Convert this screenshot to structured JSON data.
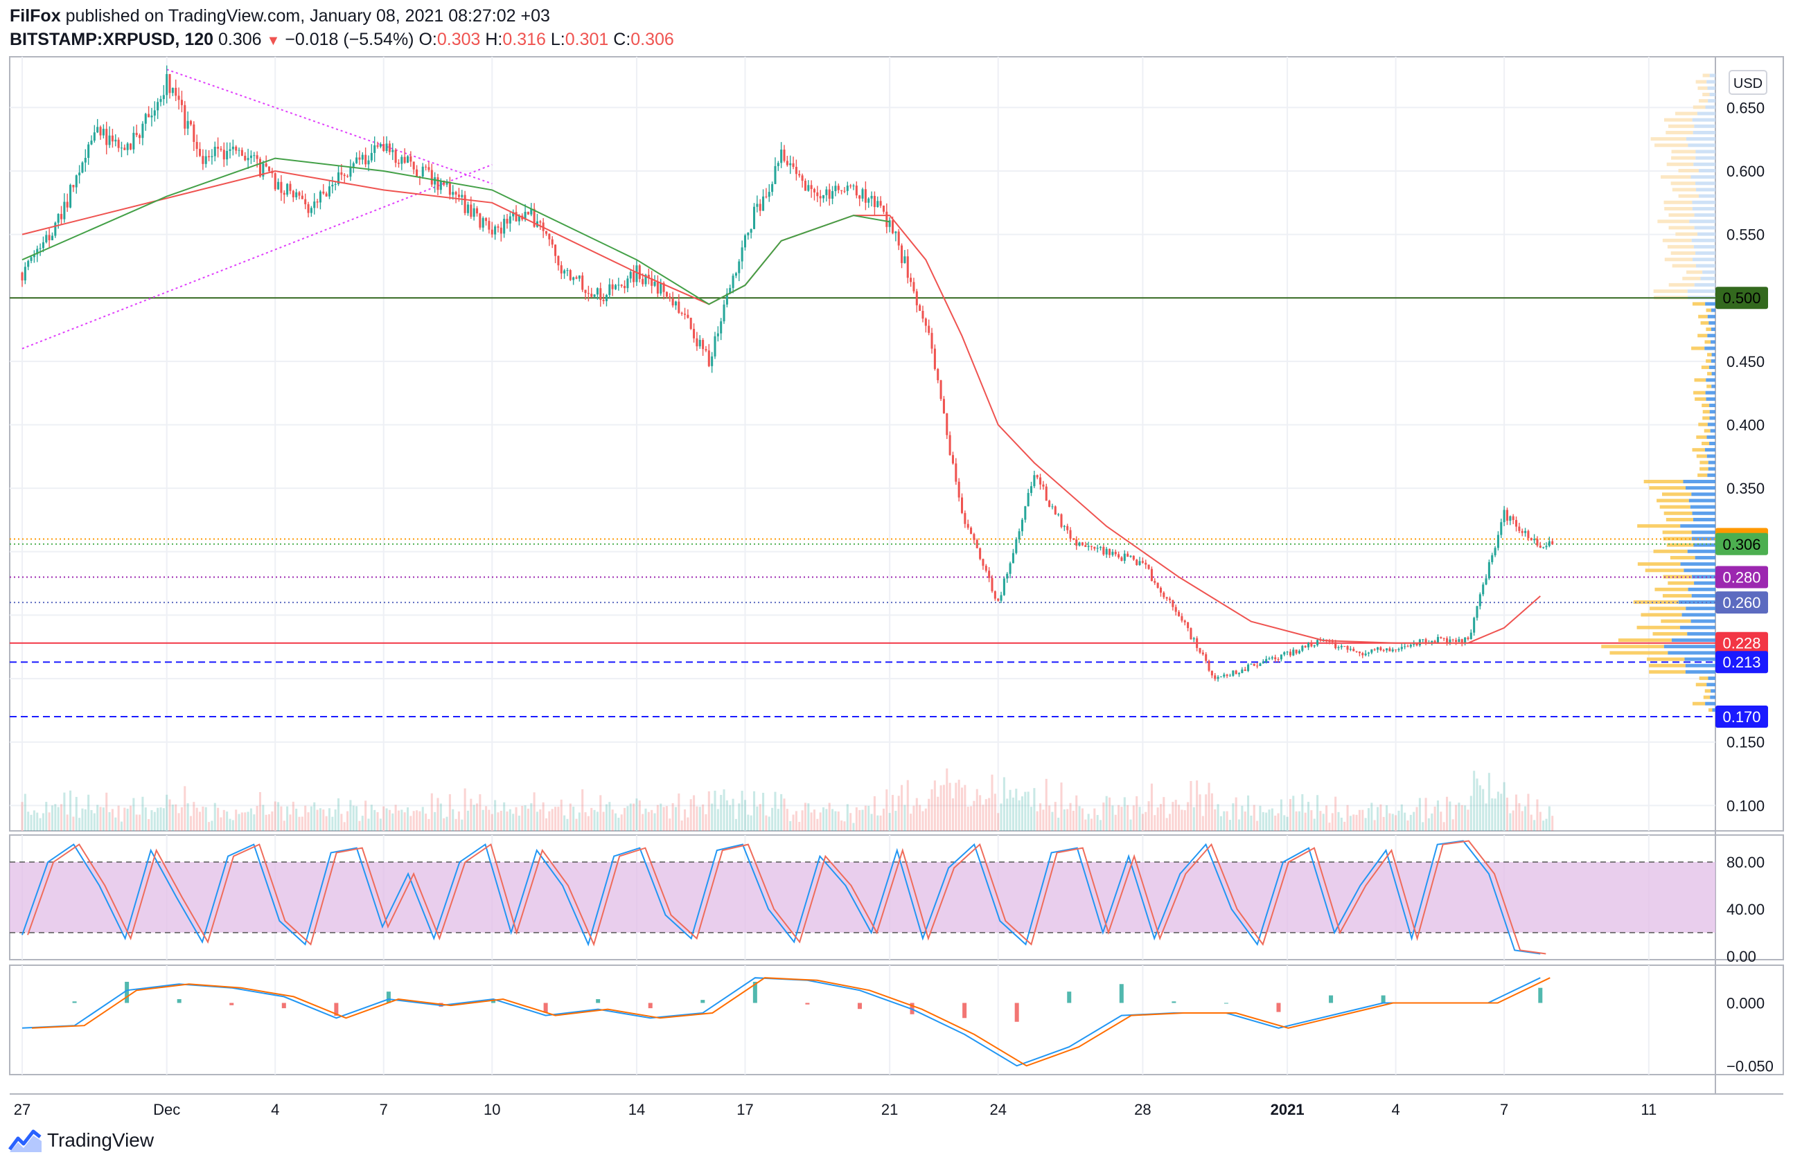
{
  "header": {
    "publisher": "FilFox",
    "published_text": "published on TradingView.com, January 08, 2021 08:27:02 +03",
    "symbol": "BITSTAMP:XRPUSD, 120",
    "last": "0.306",
    "change": "−0.018 (−5.54%)",
    "o_label": "O:",
    "o_value": "0.303",
    "h_label": "H:",
    "h_value": "0.316",
    "l_label": "L:",
    "l_value": "0.301",
    "c_label": "C:",
    "c_value": "0.306"
  },
  "footer": {
    "brand": "TradingView"
  },
  "colors": {
    "up": "#26a69a",
    "down": "#ef5350",
    "ma_fast": "#43a047",
    "ma_slow": "#ef5350",
    "stoch_k": "#2196f3",
    "stoch_d": "#ef6c5b",
    "stoch_band": "#e1bee7",
    "macd": "#2196f3",
    "signal": "#ff6d00",
    "support": "#33691e",
    "triangle": "#e040fb",
    "level_blue": "#1a1aff",
    "level_purple": "#9c27b0",
    "level_dot": "#5c6bc0",
    "level_orange": "#ff9800",
    "level_red": "#f23645"
  },
  "chart_data": [
    {
      "type": "candlestick",
      "title": "BITSTAMP:XRPUSD, 120",
      "currency_label": "USD",
      "x_tick_labels": [
        "27",
        "Dec",
        "4",
        "7",
        "10",
        "14",
        "17",
        "21",
        "24",
        "28",
        "2021",
        "4",
        "7",
        "11"
      ],
      "x_tick_dates": [
        "2020-11-27",
        "2020-12-01",
        "2020-12-04",
        "2020-12-07",
        "2020-12-10",
        "2020-12-14",
        "2020-12-17",
        "2020-12-21",
        "2020-12-24",
        "2020-12-28",
        "2021-01-01",
        "2021-01-04",
        "2021-01-07",
        "2021-01-11"
      ],
      "y_ticks": [
        0.1,
        0.15,
        0.2,
        0.25,
        0.3,
        0.35,
        0.4,
        0.45,
        0.5,
        0.55,
        0.6,
        0.65
      ],
      "y_tick_labels": [
        "0.100",
        "0.150",
        "",
        "",
        "",
        "0.350",
        "0.400",
        "0.450",
        "",
        "0.550",
        "0.600",
        "0.650"
      ],
      "ylim": [
        0.08,
        0.69
      ],
      "close_path": [
        [
          "2020-11-27",
          0.52
        ],
        [
          "2020-11-28",
          0.56
        ],
        [
          "2020-11-29",
          0.63
        ],
        [
          "2020-11-30",
          0.62
        ],
        [
          "2020-12-01",
          0.67
        ],
        [
          "2020-12-02",
          0.61
        ],
        [
          "2020-12-03",
          0.62
        ],
        [
          "2020-12-04",
          0.59
        ],
        [
          "2020-12-05",
          0.57
        ],
        [
          "2020-12-06",
          0.6
        ],
        [
          "2020-12-07",
          0.62
        ],
        [
          "2020-12-08",
          0.6
        ],
        [
          "2020-12-09",
          0.58
        ],
        [
          "2020-12-10",
          0.55
        ],
        [
          "2020-12-11",
          0.57
        ],
        [
          "2020-12-12",
          0.52
        ],
        [
          "2020-12-13",
          0.5
        ],
        [
          "2020-12-14",
          0.52
        ],
        [
          "2020-12-15",
          0.5
        ],
        [
          "2020-12-16",
          0.45
        ],
        [
          "2020-12-17",
          0.55
        ],
        [
          "2020-12-18",
          0.61
        ],
        [
          "2020-12-19",
          0.58
        ],
        [
          "2020-12-20",
          0.59
        ],
        [
          "2020-12-21",
          0.56
        ],
        [
          "2020-12-22",
          0.48
        ],
        [
          "2020-12-23",
          0.33
        ],
        [
          "2020-12-24",
          0.26
        ],
        [
          "2020-12-25",
          0.36
        ],
        [
          "2020-12-26",
          0.31
        ],
        [
          "2020-12-27",
          0.3
        ],
        [
          "2020-12-28",
          0.29
        ],
        [
          "2020-12-29",
          0.25
        ],
        [
          "2020-12-30",
          0.2
        ],
        [
          "2020-12-31",
          0.21
        ],
        [
          "2021-01-01",
          0.22
        ],
        [
          "2021-01-02",
          0.23
        ],
        [
          "2021-01-03",
          0.22
        ],
        [
          "2021-01-04",
          0.225
        ],
        [
          "2021-01-05",
          0.23
        ],
        [
          "2021-01-06",
          0.23
        ],
        [
          "2021-01-07",
          0.33
        ],
        [
          "2021-01-08",
          0.306
        ]
      ],
      "ma_fast_path": [
        [
          "2020-11-27",
          0.53
        ],
        [
          "2020-12-01",
          0.58
        ],
        [
          "2020-12-04",
          0.61
        ],
        [
          "2020-12-07",
          0.6
        ],
        [
          "2020-12-10",
          0.585
        ],
        [
          "2020-12-14",
          0.53
        ],
        [
          "2020-12-16",
          0.495
        ],
        [
          "2020-12-17",
          0.51
        ],
        [
          "2020-12-18",
          0.545
        ],
        [
          "2020-12-20",
          0.565
        ],
        [
          "2020-12-21",
          0.56
        ]
      ],
      "ma_slow_path": [
        [
          "2020-11-27",
          0.55
        ],
        [
          "2020-12-04",
          0.6
        ],
        [
          "2020-12-07",
          0.585
        ],
        [
          "2020-12-10",
          0.575
        ],
        [
          "2020-12-14",
          0.52
        ],
        [
          "2020-12-16",
          0.495
        ],
        [
          "2020-12-17",
          0.51
        ],
        [
          "2020-12-18",
          0.545
        ],
        [
          "2020-12-20",
          0.565
        ],
        [
          "2020-12-21",
          0.565
        ],
        [
          "2020-12-22",
          0.53
        ],
        [
          "2020-12-23",
          0.47
        ],
        [
          "2020-12-24",
          0.4
        ],
        [
          "2020-12-25",
          0.37
        ],
        [
          "2020-12-27",
          0.32
        ],
        [
          "2020-12-29",
          0.28
        ],
        [
          "2020-12-31",
          0.245
        ],
        [
          "2021-01-02",
          0.23
        ],
        [
          "2021-01-04",
          0.228
        ],
        [
          "2021-01-06",
          0.228
        ],
        [
          "2021-01-07",
          0.24
        ],
        [
          "2021-01-08",
          0.265
        ]
      ],
      "triangle_lines": [
        [
          [
            "2020-11-27",
            0.46
          ],
          [
            "2020-12-10",
            0.605
          ]
        ],
        [
          [
            "2020-12-01",
            0.68
          ],
          [
            "2020-12-10",
            0.59
          ]
        ]
      ],
      "horizontal_levels": [
        {
          "value": 0.5,
          "label": "0.500",
          "style": "solid",
          "color": "#33691e"
        },
        {
          "value": 0.31,
          "label": "0.310",
          "style": "dotted",
          "color": "#ff9800"
        },
        {
          "value": 0.306,
          "label": "0.306",
          "style": "dotted",
          "color": "#4caf50"
        },
        {
          "value": 0.28,
          "label": "0.280",
          "style": "dotted",
          "color": "#9c27b0"
        },
        {
          "value": 0.26,
          "label": "0.260",
          "style": "dotted",
          "color": "#5c6bc0"
        },
        {
          "value": 0.228,
          "label": "0.228",
          "style": "solid",
          "color": "#f23645"
        },
        {
          "value": 0.213,
          "label": "0.213",
          "style": "dashed",
          "color": "#1a1aff"
        },
        {
          "value": 0.17,
          "label": "0.170",
          "style": "dashed",
          "color": "#1a1aff"
        }
      ]
    },
    {
      "type": "line",
      "title": "Stochastic",
      "y_ticks": [
        0,
        40,
        80
      ],
      "y_tick_labels": [
        "0.00",
        "40.00",
        "80.00"
      ],
      "ylim": [
        -3,
        103
      ],
      "band": [
        20,
        80
      ],
      "series": [
        {
          "name": "",
          "values": [
            18,
            80,
            95,
            60,
            15,
            90,
            50,
            12,
            85,
            95,
            30,
            10,
            88,
            92,
            25,
            70,
            15,
            80,
            95,
            20,
            90,
            60,
            10,
            85,
            92,
            35,
            15,
            90,
            95,
            40,
            12,
            85,
            60,
            20,
            90,
            15,
            75,
            95,
            30,
            10,
            88,
            92,
            20,
            85,
            15,
            70,
            95,
            40,
            10,
            80,
            92,
            20,
            60,
            90,
            15,
            95,
            98,
            70,
            5,
            2
          ]
        }
      ]
    },
    {
      "type": "line",
      "title": "MACD",
      "y_ticks": [
        0.0,
        -0.05
      ],
      "y_tick_labels": [
        "0.000",
        "−0.050"
      ],
      "ylim": [
        -0.057,
        0.03
      ],
      "series": [
        {
          "name": "",
          "values": [
            -0.02,
            -0.018,
            0.01,
            0.015,
            0.012,
            0.005,
            -0.012,
            0.003,
            -0.002,
            0.003,
            -0.01,
            -0.005,
            -0.012,
            -0.008,
            0.02,
            0.018,
            0.01,
            -0.005,
            -0.025,
            -0.05,
            -0.035,
            -0.01,
            -0.008,
            -0.008,
            -0.02,
            -0.01,
            0.0,
            0.0,
            0.0,
            0.02
          ]
        }
      ]
    }
  ]
}
